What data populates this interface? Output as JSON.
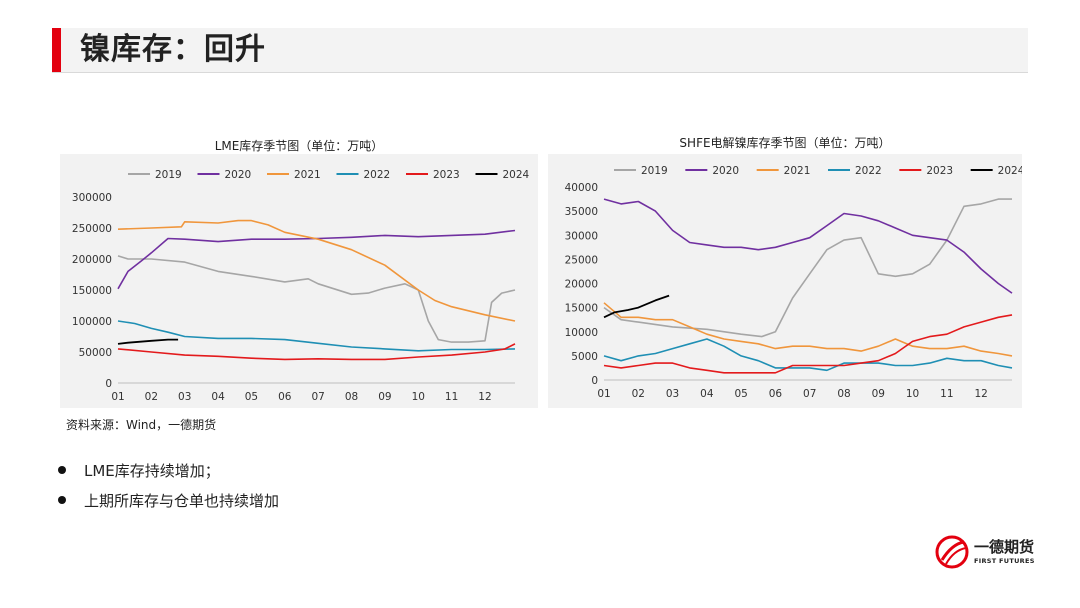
{
  "header": {
    "title": "镍库存：回升"
  },
  "source": "资料来源：Wind，一德期货",
  "bullets": [
    "LME库存持续增加；",
    "上期所库存与仓单也持续增加"
  ],
  "logo": {
    "cn": "一德期货",
    "en": "FIRST FUTURES"
  },
  "colors": {
    "accent": "#e3000f",
    "2019": "#a6a6a6",
    "2020": "#7030a0",
    "2021": "#f0963c",
    "2022": "#1f8fb4",
    "2023": "#e31a1c",
    "2024": "#000000"
  },
  "chart_data": [
    {
      "type": "line",
      "title": "LME库存季节图（单位：万吨）",
      "x_ticks": [
        "01",
        "02",
        "03",
        "04",
        "05",
        "06",
        "07",
        "08",
        "09",
        "10",
        "11",
        "12"
      ],
      "ylim": [
        0,
        300000
      ],
      "y_ticks": [
        0,
        50000,
        100000,
        150000,
        200000,
        250000,
        300000
      ],
      "legend_position": "top",
      "series": [
        {
          "name": "2019",
          "values": [
            [
              1,
              205000
            ],
            [
              1.3,
              200000
            ],
            [
              2,
              200000
            ],
            [
              3,
              195000
            ],
            [
              4,
              180000
            ],
            [
              5,
              172000
            ],
            [
              6,
              163000
            ],
            [
              6.7,
              168000
            ],
            [
              7,
              160000
            ],
            [
              8,
              143000
            ],
            [
              8.5,
              145000
            ],
            [
              9,
              153000
            ],
            [
              9.6,
              160000
            ],
            [
              10,
              150000
            ],
            [
              10.3,
              100000
            ],
            [
              10.6,
              70000
            ],
            [
              11,
              66000
            ],
            [
              11.5,
              66000
            ],
            [
              12,
              68000
            ],
            [
              12.2,
              130000
            ],
            [
              12.5,
              145000
            ],
            [
              12.9,
              150000
            ]
          ]
        },
        {
          "name": "2020",
          "values": [
            [
              1,
              152000
            ],
            [
              1.3,
              180000
            ],
            [
              1.7,
              197000
            ],
            [
              2,
              210000
            ],
            [
              2.5,
              233000
            ],
            [
              3,
              232000
            ],
            [
              4,
              228000
            ],
            [
              5,
              232000
            ],
            [
              6,
              232000
            ],
            [
              7,
              233000
            ],
            [
              8,
              235000
            ],
            [
              9,
              238000
            ],
            [
              10,
              236000
            ],
            [
              11,
              238000
            ],
            [
              12,
              240000
            ],
            [
              12.9,
              246000
            ]
          ]
        },
        {
          "name": "2021",
          "values": [
            [
              1,
              248000
            ],
            [
              2,
              250000
            ],
            [
              2.9,
              252000
            ],
            [
              3,
              260000
            ],
            [
              4,
              258000
            ],
            [
              4.6,
              262000
            ],
            [
              5,
              262000
            ],
            [
              5.5,
              255000
            ],
            [
              6,
              243000
            ],
            [
              7,
              232000
            ],
            [
              8,
              215000
            ],
            [
              9,
              190000
            ],
            [
              10,
              150000
            ],
            [
              10.5,
              133000
            ],
            [
              11,
              123000
            ],
            [
              12,
              110000
            ],
            [
              12.9,
              100000
            ]
          ]
        },
        {
          "name": "2022",
          "values": [
            [
              1,
              100000
            ],
            [
              1.5,
              96000
            ],
            [
              2,
              88000
            ],
            [
              2.5,
              82000
            ],
            [
              3,
              75000
            ],
            [
              4,
              72000
            ],
            [
              5,
              72000
            ],
            [
              6,
              70000
            ],
            [
              7,
              64000
            ],
            [
              8,
              58000
            ],
            [
              9,
              55000
            ],
            [
              10,
              52000
            ],
            [
              11,
              54000
            ],
            [
              12,
              54000
            ],
            [
              12.9,
              55000
            ]
          ]
        },
        {
          "name": "2023",
          "values": [
            [
              1,
              55000
            ],
            [
              2,
              50000
            ],
            [
              3,
              45000
            ],
            [
              4,
              43000
            ],
            [
              5,
              40000
            ],
            [
              6,
              38000
            ],
            [
              7,
              39000
            ],
            [
              8,
              38000
            ],
            [
              9,
              38000
            ],
            [
              10,
              42000
            ],
            [
              11,
              45000
            ],
            [
              12,
              50000
            ],
            [
              12.6,
              55000
            ],
            [
              12.9,
              63000
            ]
          ]
        },
        {
          "name": "2024",
          "values": [
            [
              1,
              63000
            ],
            [
              1.3,
              65000
            ],
            [
              2,
              68000
            ],
            [
              2.5,
              70000
            ],
            [
              2.8,
              70000
            ]
          ]
        }
      ]
    },
    {
      "type": "line",
      "title": "SHFE电解镍库存季节图（单位：万吨）",
      "x_ticks": [
        "01",
        "02",
        "03",
        "04",
        "05",
        "06",
        "07",
        "08",
        "09",
        "10",
        "11",
        "12"
      ],
      "ylim": [
        0,
        40000
      ],
      "y_ticks": [
        0,
        5000,
        10000,
        15000,
        20000,
        25000,
        30000,
        35000,
        40000
      ],
      "legend_position": "top",
      "series": [
        {
          "name": "2019",
          "values": [
            [
              1,
              15000
            ],
            [
              1.5,
              12500
            ],
            [
              2,
              12000
            ],
            [
              3,
              11000
            ],
            [
              4,
              10500
            ],
            [
              5,
              9500
            ],
            [
              5.6,
              9000
            ],
            [
              6,
              10000
            ],
            [
              6.5,
              17000
            ],
            [
              7,
              22000
            ],
            [
              7.5,
              27000
            ],
            [
              8,
              29000
            ],
            [
              8.5,
              29500
            ],
            [
              9,
              22000
            ],
            [
              9.5,
              21500
            ],
            [
              10,
              22000
            ],
            [
              10.5,
              24000
            ],
            [
              11,
              29000
            ],
            [
              11.5,
              36000
            ],
            [
              12,
              36500
            ],
            [
              12.5,
              37500
            ],
            [
              12.9,
              37500
            ]
          ]
        },
        {
          "name": "2020",
          "values": [
            [
              1,
              37500
            ],
            [
              1.5,
              36500
            ],
            [
              2,
              37000
            ],
            [
              2.5,
              35000
            ],
            [
              3,
              31000
            ],
            [
              3.5,
              28500
            ],
            [
              4,
              28000
            ],
            [
              4.5,
              27500
            ],
            [
              5,
              27500
            ],
            [
              5.5,
              27000
            ],
            [
              6,
              27500
            ],
            [
              6.5,
              28500
            ],
            [
              7,
              29500
            ],
            [
              7.5,
              32000
            ],
            [
              8,
              34500
            ],
            [
              8.5,
              34000
            ],
            [
              9,
              33000
            ],
            [
              9.5,
              31500
            ],
            [
              10,
              30000
            ],
            [
              10.5,
              29500
            ],
            [
              11,
              29000
            ],
            [
              11.5,
              26500
            ],
            [
              12,
              23000
            ],
            [
              12.5,
              20000
            ],
            [
              12.9,
              18000
            ]
          ]
        },
        {
          "name": "2021",
          "values": [
            [
              1,
              16000
            ],
            [
              1.5,
              13000
            ],
            [
              2,
              13000
            ],
            [
              2.5,
              12500
            ],
            [
              3,
              12500
            ],
            [
              3.5,
              11000
            ],
            [
              4,
              9500
            ],
            [
              4.5,
              8500
            ],
            [
              5,
              8000
            ],
            [
              5.5,
              7500
            ],
            [
              6,
              6500
            ],
            [
              6.5,
              7000
            ],
            [
              7,
              7000
            ],
            [
              7.5,
              6500
            ],
            [
              8,
              6500
            ],
            [
              8.5,
              6000
            ],
            [
              9,
              7000
            ],
            [
              9.5,
              8500
            ],
            [
              10,
              7000
            ],
            [
              10.5,
              6500
            ],
            [
              11,
              6500
            ],
            [
              11.5,
              7000
            ],
            [
              12,
              6000
            ],
            [
              12.5,
              5500
            ],
            [
              12.9,
              5000
            ]
          ]
        },
        {
          "name": "2022",
          "values": [
            [
              1,
              5000
            ],
            [
              1.5,
              4000
            ],
            [
              2,
              5000
            ],
            [
              2.5,
              5500
            ],
            [
              3,
              6500
            ],
            [
              3.5,
              7500
            ],
            [
              4,
              8500
            ],
            [
              4.5,
              7000
            ],
            [
              5,
              5000
            ],
            [
              5.5,
              4000
            ],
            [
              6,
              2500
            ],
            [
              6.5,
              2500
            ],
            [
              7,
              2500
            ],
            [
              7.5,
              2000
            ],
            [
              8,
              3500
            ],
            [
              8.5,
              3500
            ],
            [
              9,
              3500
            ],
            [
              9.5,
              3000
            ],
            [
              10,
              3000
            ],
            [
              10.5,
              3500
            ],
            [
              11,
              4500
            ],
            [
              11.5,
              4000
            ],
            [
              12,
              4000
            ],
            [
              12.5,
              3000
            ],
            [
              12.9,
              2500
            ]
          ]
        },
        {
          "name": "2023",
          "values": [
            [
              1,
              3000
            ],
            [
              1.5,
              2500
            ],
            [
              2,
              3000
            ],
            [
              2.5,
              3500
            ],
            [
              3,
              3500
            ],
            [
              3.5,
              2500
            ],
            [
              4,
              2000
            ],
            [
              4.5,
              1500
            ],
            [
              5,
              1500
            ],
            [
              5.5,
              1500
            ],
            [
              6,
              1500
            ],
            [
              6.5,
              3000
            ],
            [
              7,
              3000
            ],
            [
              7.5,
              3000
            ],
            [
              8,
              3000
            ],
            [
              8.5,
              3500
            ],
            [
              9,
              4000
            ],
            [
              9.5,
              5500
            ],
            [
              10,
              8000
            ],
            [
              10.5,
              9000
            ],
            [
              11,
              9500
            ],
            [
              11.5,
              11000
            ],
            [
              12,
              12000
            ],
            [
              12.5,
              13000
            ],
            [
              12.9,
              13500
            ]
          ]
        },
        {
          "name": "2024",
          "values": [
            [
              1,
              13000
            ],
            [
              1.3,
              14000
            ],
            [
              1.7,
              14500
            ],
            [
              2,
              15000
            ],
            [
              2.5,
              16500
            ],
            [
              2.9,
              17500
            ]
          ]
        }
      ]
    }
  ]
}
